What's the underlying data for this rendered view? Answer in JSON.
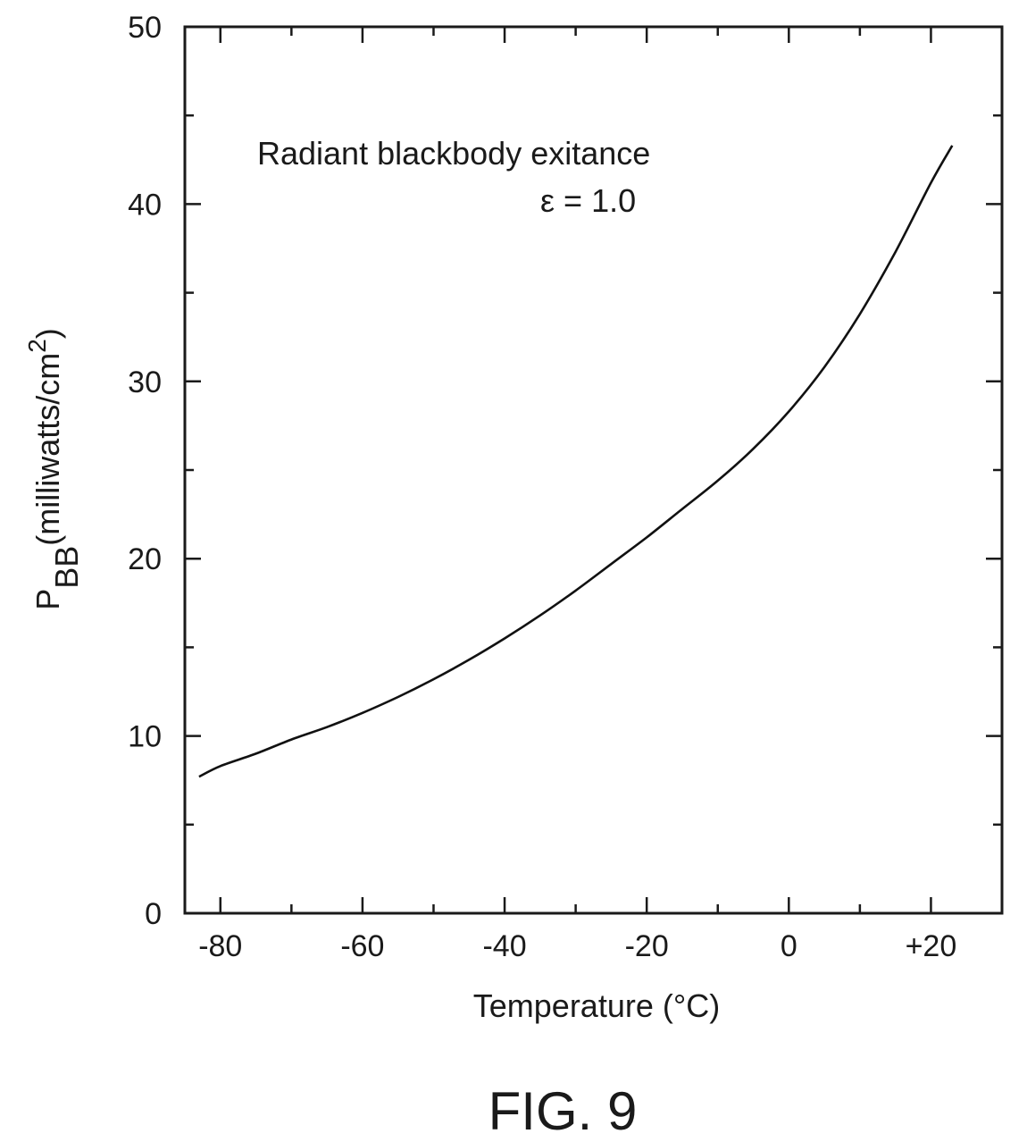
{
  "chart_data": {
    "type": "line",
    "title": "",
    "xlabel": "Temperature (°C)",
    "ylabel": {
      "base": "P",
      "subscript": "BB",
      "unit_prefix": "(milliwatts/cm",
      "unit_superscript": "2",
      "unit_suffix": ")"
    },
    "xlim": [
      -85,
      30
    ],
    "ylim": [
      0,
      50
    ],
    "x_ticks": [
      {
        "value": -80,
        "label": "-80"
      },
      {
        "value": -60,
        "label": "-60"
      },
      {
        "value": -40,
        "label": "-40"
      },
      {
        "value": -20,
        "label": "-20"
      },
      {
        "value": 0,
        "label": "0"
      },
      {
        "value": 20,
        "label": "+20"
      }
    ],
    "x_minor_ticks": [
      -70,
      -50,
      -30,
      -10,
      10
    ],
    "y_ticks": [
      {
        "value": 0,
        "label": "0"
      },
      {
        "value": 10,
        "label": "10"
      },
      {
        "value": 20,
        "label": "20"
      },
      {
        "value": 30,
        "label": "30"
      },
      {
        "value": 40,
        "label": "40"
      },
      {
        "value": 50,
        "label": "50"
      }
    ],
    "y_minor_ticks": [
      5,
      15,
      25,
      35,
      45
    ],
    "grid": false,
    "annotations": [
      "Radiant blackbody exitance",
      "ε = 1.0"
    ],
    "series": [
      {
        "x": [
          -83,
          -80,
          -75,
          -70,
          -65,
          -60,
          -55,
          -50,
          -45,
          -40,
          -35,
          -30,
          -25,
          -20,
          -15,
          -10,
          -5,
          0,
          5,
          10,
          15,
          20,
          23
        ],
        "values": [
          7.7,
          8.3,
          9.0,
          9.8,
          10.5,
          11.3,
          12.2,
          13.2,
          14.3,
          15.5,
          16.8,
          18.2,
          19.7,
          21.2,
          22.8,
          24.4,
          26.2,
          28.3,
          30.8,
          33.8,
          37.3,
          41.2,
          43.3
        ]
      }
    ]
  },
  "caption": "FIG. 9"
}
